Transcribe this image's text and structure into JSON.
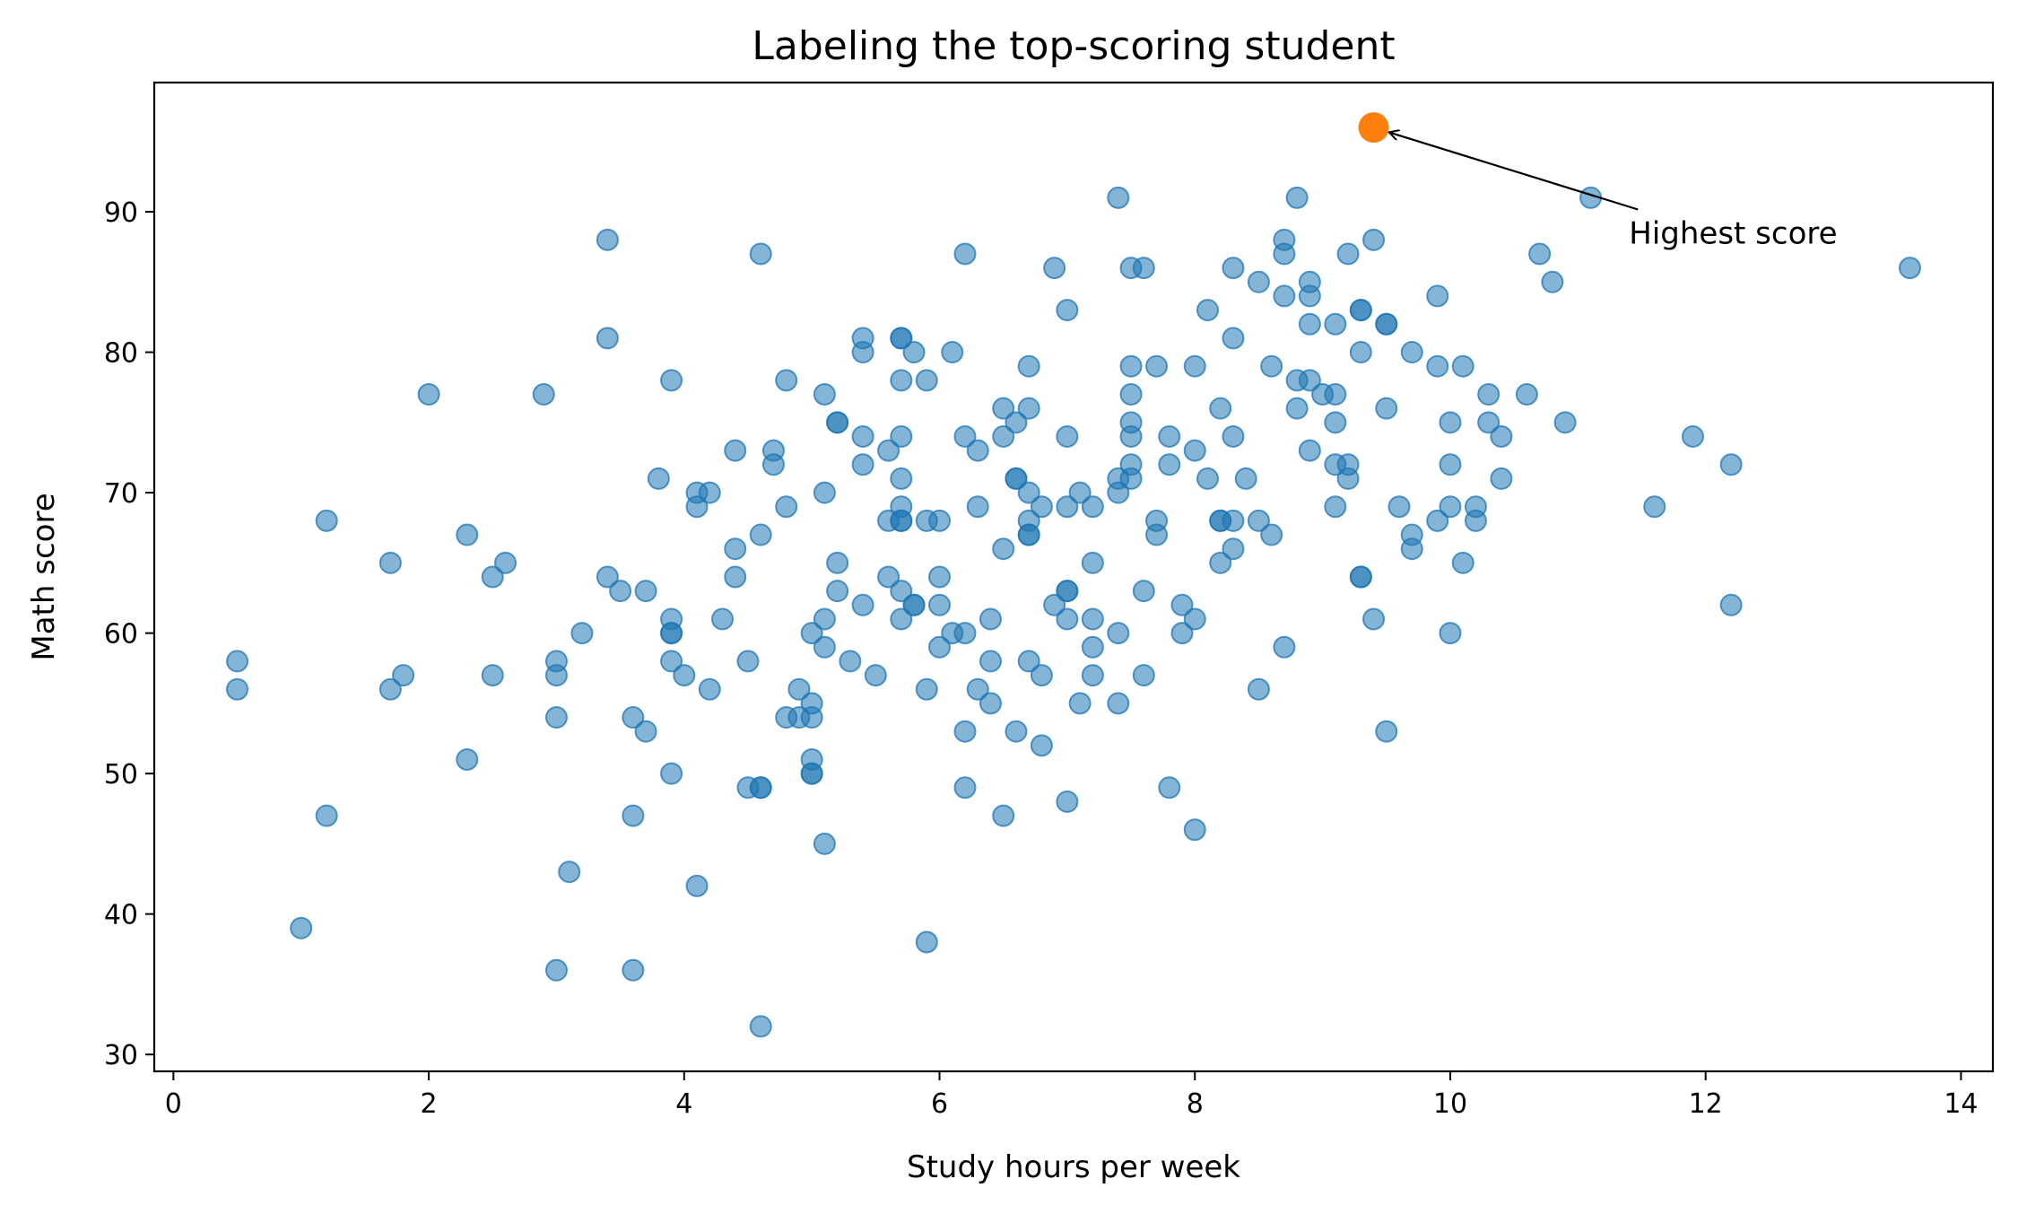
{
  "chart_data": {
    "type": "scatter",
    "title": "Labeling the top-scoring student",
    "xlabel": "Study hours per week",
    "ylabel": "Math score",
    "xlim": [
      -0.15,
      14.25
    ],
    "ylim": [
      28.8,
      99.2
    ],
    "xticks": [
      0,
      2,
      4,
      6,
      8,
      10,
      12,
      14
    ],
    "yticks": [
      30,
      40,
      50,
      60,
      70,
      80,
      90
    ],
    "grid": false,
    "legend": "none",
    "colors": {
      "points": "#1f77b4",
      "highlight": "#ff7f0e"
    },
    "series": [
      {
        "points": [
          [
            0.5,
            58
          ],
          [
            0.5,
            56
          ],
          [
            1.0,
            39
          ],
          [
            1.2,
            68
          ],
          [
            1.2,
            47
          ],
          [
            1.7,
            65
          ],
          [
            1.7,
            56
          ],
          [
            1.8,
            57
          ],
          [
            2.0,
            77
          ],
          [
            2.3,
            67
          ],
          [
            2.3,
            51
          ],
          [
            2.5,
            64
          ],
          [
            2.5,
            57
          ],
          [
            2.6,
            65
          ],
          [
            2.9,
            77
          ],
          [
            3.0,
            58
          ],
          [
            3.0,
            57
          ],
          [
            3.0,
            54
          ],
          [
            3.0,
            36
          ],
          [
            3.1,
            43
          ],
          [
            3.2,
            60
          ],
          [
            3.4,
            88
          ],
          [
            3.4,
            81
          ],
          [
            3.4,
            64
          ],
          [
            3.5,
            63
          ],
          [
            3.6,
            54
          ],
          [
            3.6,
            47
          ],
          [
            3.6,
            36
          ],
          [
            3.7,
            63
          ],
          [
            3.7,
            53
          ],
          [
            3.8,
            71
          ],
          [
            3.9,
            78
          ],
          [
            3.9,
            61
          ],
          [
            3.9,
            60
          ],
          [
            3.9,
            60
          ],
          [
            3.9,
            58
          ],
          [
            3.9,
            50
          ],
          [
            4.0,
            57
          ],
          [
            4.1,
            70
          ],
          [
            4.1,
            69
          ],
          [
            4.1,
            42
          ],
          [
            4.2,
            70
          ],
          [
            4.2,
            56
          ],
          [
            4.3,
            61
          ],
          [
            4.4,
            73
          ],
          [
            4.4,
            66
          ],
          [
            4.4,
            64
          ],
          [
            4.5,
            58
          ],
          [
            4.5,
            49
          ],
          [
            4.6,
            87
          ],
          [
            4.6,
            67
          ],
          [
            4.6,
            49
          ],
          [
            4.6,
            49
          ],
          [
            4.6,
            32
          ],
          [
            4.7,
            73
          ],
          [
            4.7,
            72
          ],
          [
            4.8,
            78
          ],
          [
            4.8,
            69
          ],
          [
            4.8,
            54
          ],
          [
            4.9,
            56
          ],
          [
            4.9,
            54
          ],
          [
            5.0,
            60
          ],
          [
            5.0,
            55
          ],
          [
            5.0,
            54
          ],
          [
            5.0,
            51
          ],
          [
            5.0,
            50
          ],
          [
            5.0,
            50
          ],
          [
            5.1,
            77
          ],
          [
            5.1,
            70
          ],
          [
            5.1,
            61
          ],
          [
            5.1,
            59
          ],
          [
            5.1,
            45
          ],
          [
            5.2,
            75
          ],
          [
            5.2,
            75
          ],
          [
            5.2,
            65
          ],
          [
            5.2,
            63
          ],
          [
            5.3,
            58
          ],
          [
            5.4,
            81
          ],
          [
            5.4,
            80
          ],
          [
            5.4,
            74
          ],
          [
            5.4,
            72
          ],
          [
            5.4,
            62
          ],
          [
            5.5,
            57
          ],
          [
            5.6,
            73
          ],
          [
            5.6,
            68
          ],
          [
            5.6,
            64
          ],
          [
            5.7,
            81
          ],
          [
            5.7,
            81
          ],
          [
            5.7,
            78
          ],
          [
            5.7,
            74
          ],
          [
            5.7,
            71
          ],
          [
            5.7,
            69
          ],
          [
            5.7,
            68
          ],
          [
            5.7,
            68
          ],
          [
            5.7,
            63
          ],
          [
            5.7,
            61
          ],
          [
            5.8,
            80
          ],
          [
            5.8,
            62
          ],
          [
            5.8,
            62
          ],
          [
            5.9,
            78
          ],
          [
            5.9,
            68
          ],
          [
            5.9,
            56
          ],
          [
            5.9,
            38
          ],
          [
            6.0,
            68
          ],
          [
            6.0,
            64
          ],
          [
            6.0,
            62
          ],
          [
            6.0,
            59
          ],
          [
            6.1,
            80
          ],
          [
            6.1,
            60
          ],
          [
            6.2,
            87
          ],
          [
            6.2,
            74
          ],
          [
            6.2,
            60
          ],
          [
            6.2,
            53
          ],
          [
            6.2,
            49
          ],
          [
            6.3,
            73
          ],
          [
            6.3,
            69
          ],
          [
            6.3,
            56
          ],
          [
            6.4,
            61
          ],
          [
            6.4,
            58
          ],
          [
            6.4,
            55
          ],
          [
            6.5,
            76
          ],
          [
            6.5,
            74
          ],
          [
            6.5,
            66
          ],
          [
            6.5,
            47
          ],
          [
            6.6,
            75
          ],
          [
            6.6,
            71
          ],
          [
            6.6,
            71
          ],
          [
            6.6,
            53
          ],
          [
            6.7,
            79
          ],
          [
            6.7,
            76
          ],
          [
            6.7,
            70
          ],
          [
            6.7,
            68
          ],
          [
            6.7,
            67
          ],
          [
            6.7,
            67
          ],
          [
            6.7,
            58
          ],
          [
            6.8,
            69
          ],
          [
            6.8,
            57
          ],
          [
            6.8,
            52
          ],
          [
            6.9,
            86
          ],
          [
            6.9,
            62
          ],
          [
            7.0,
            83
          ],
          [
            7.0,
            74
          ],
          [
            7.0,
            69
          ],
          [
            7.0,
            63
          ],
          [
            7.0,
            63
          ],
          [
            7.0,
            61
          ],
          [
            7.0,
            48
          ],
          [
            7.1,
            70
          ],
          [
            7.1,
            55
          ],
          [
            7.2,
            69
          ],
          [
            7.2,
            65
          ],
          [
            7.2,
            61
          ],
          [
            7.2,
            59
          ],
          [
            7.2,
            57
          ],
          [
            7.4,
            91
          ],
          [
            7.4,
            71
          ],
          [
            7.4,
            70
          ],
          [
            7.4,
            60
          ],
          [
            7.4,
            55
          ],
          [
            7.5,
            86
          ],
          [
            7.5,
            79
          ],
          [
            7.5,
            77
          ],
          [
            7.5,
            75
          ],
          [
            7.5,
            74
          ],
          [
            7.5,
            72
          ],
          [
            7.5,
            71
          ],
          [
            7.6,
            86
          ],
          [
            7.6,
            63
          ],
          [
            7.6,
            57
          ],
          [
            7.7,
            79
          ],
          [
            7.7,
            68
          ],
          [
            7.7,
            67
          ],
          [
            7.8,
            74
          ],
          [
            7.8,
            72
          ],
          [
            7.8,
            49
          ],
          [
            7.9,
            62
          ],
          [
            7.9,
            60
          ],
          [
            8.0,
            79
          ],
          [
            8.0,
            73
          ],
          [
            8.0,
            61
          ],
          [
            8.0,
            46
          ],
          [
            8.1,
            83
          ],
          [
            8.1,
            71
          ],
          [
            8.2,
            76
          ],
          [
            8.2,
            68
          ],
          [
            8.2,
            68
          ],
          [
            8.2,
            65
          ],
          [
            8.3,
            86
          ],
          [
            8.3,
            81
          ],
          [
            8.3,
            74
          ],
          [
            8.3,
            68
          ],
          [
            8.3,
            66
          ],
          [
            8.4,
            71
          ],
          [
            8.5,
            85
          ],
          [
            8.5,
            68
          ],
          [
            8.5,
            56
          ],
          [
            8.6,
            79
          ],
          [
            8.6,
            67
          ],
          [
            8.7,
            88
          ],
          [
            8.7,
            87
          ],
          [
            8.7,
            84
          ],
          [
            8.7,
            59
          ],
          [
            8.8,
            91
          ],
          [
            8.8,
            78
          ],
          [
            8.8,
            76
          ],
          [
            8.9,
            85
          ],
          [
            8.9,
            84
          ],
          [
            8.9,
            82
          ],
          [
            8.9,
            78
          ],
          [
            8.9,
            73
          ],
          [
            9.0,
            77
          ],
          [
            9.1,
            82
          ],
          [
            9.1,
            77
          ],
          [
            9.1,
            75
          ],
          [
            9.1,
            72
          ],
          [
            9.1,
            69
          ],
          [
            9.2,
            87
          ],
          [
            9.2,
            72
          ],
          [
            9.2,
            71
          ],
          [
            9.3,
            83
          ],
          [
            9.3,
            83
          ],
          [
            9.3,
            80
          ],
          [
            9.3,
            64
          ],
          [
            9.3,
            64
          ],
          [
            9.4,
            88
          ],
          [
            9.4,
            61
          ],
          [
            9.5,
            82
          ],
          [
            9.5,
            82
          ],
          [
            9.5,
            76
          ],
          [
            9.5,
            53
          ],
          [
            9.6,
            69
          ],
          [
            9.7,
            80
          ],
          [
            9.7,
            67
          ],
          [
            9.7,
            66
          ],
          [
            9.9,
            84
          ],
          [
            9.9,
            79
          ],
          [
            9.9,
            68
          ],
          [
            10.0,
            75
          ],
          [
            10.0,
            72
          ],
          [
            10.0,
            69
          ],
          [
            10.0,
            60
          ],
          [
            10.1,
            79
          ],
          [
            10.1,
            65
          ],
          [
            10.2,
            69
          ],
          [
            10.2,
            68
          ],
          [
            10.3,
            77
          ],
          [
            10.3,
            75
          ],
          [
            10.4,
            74
          ],
          [
            10.4,
            71
          ],
          [
            10.6,
            77
          ],
          [
            10.7,
            87
          ],
          [
            10.8,
            85
          ],
          [
            10.9,
            75
          ],
          [
            11.1,
            91
          ],
          [
            11.6,
            69
          ],
          [
            11.9,
            74
          ],
          [
            12.2,
            72
          ],
          [
            12.2,
            62
          ],
          [
            13.6,
            86
          ]
        ]
      }
    ],
    "highlight": {
      "x": 9.4,
      "y": 96
    },
    "annotation": {
      "text": "Highest score",
      "x": 11.4,
      "y": 88.5
    }
  }
}
